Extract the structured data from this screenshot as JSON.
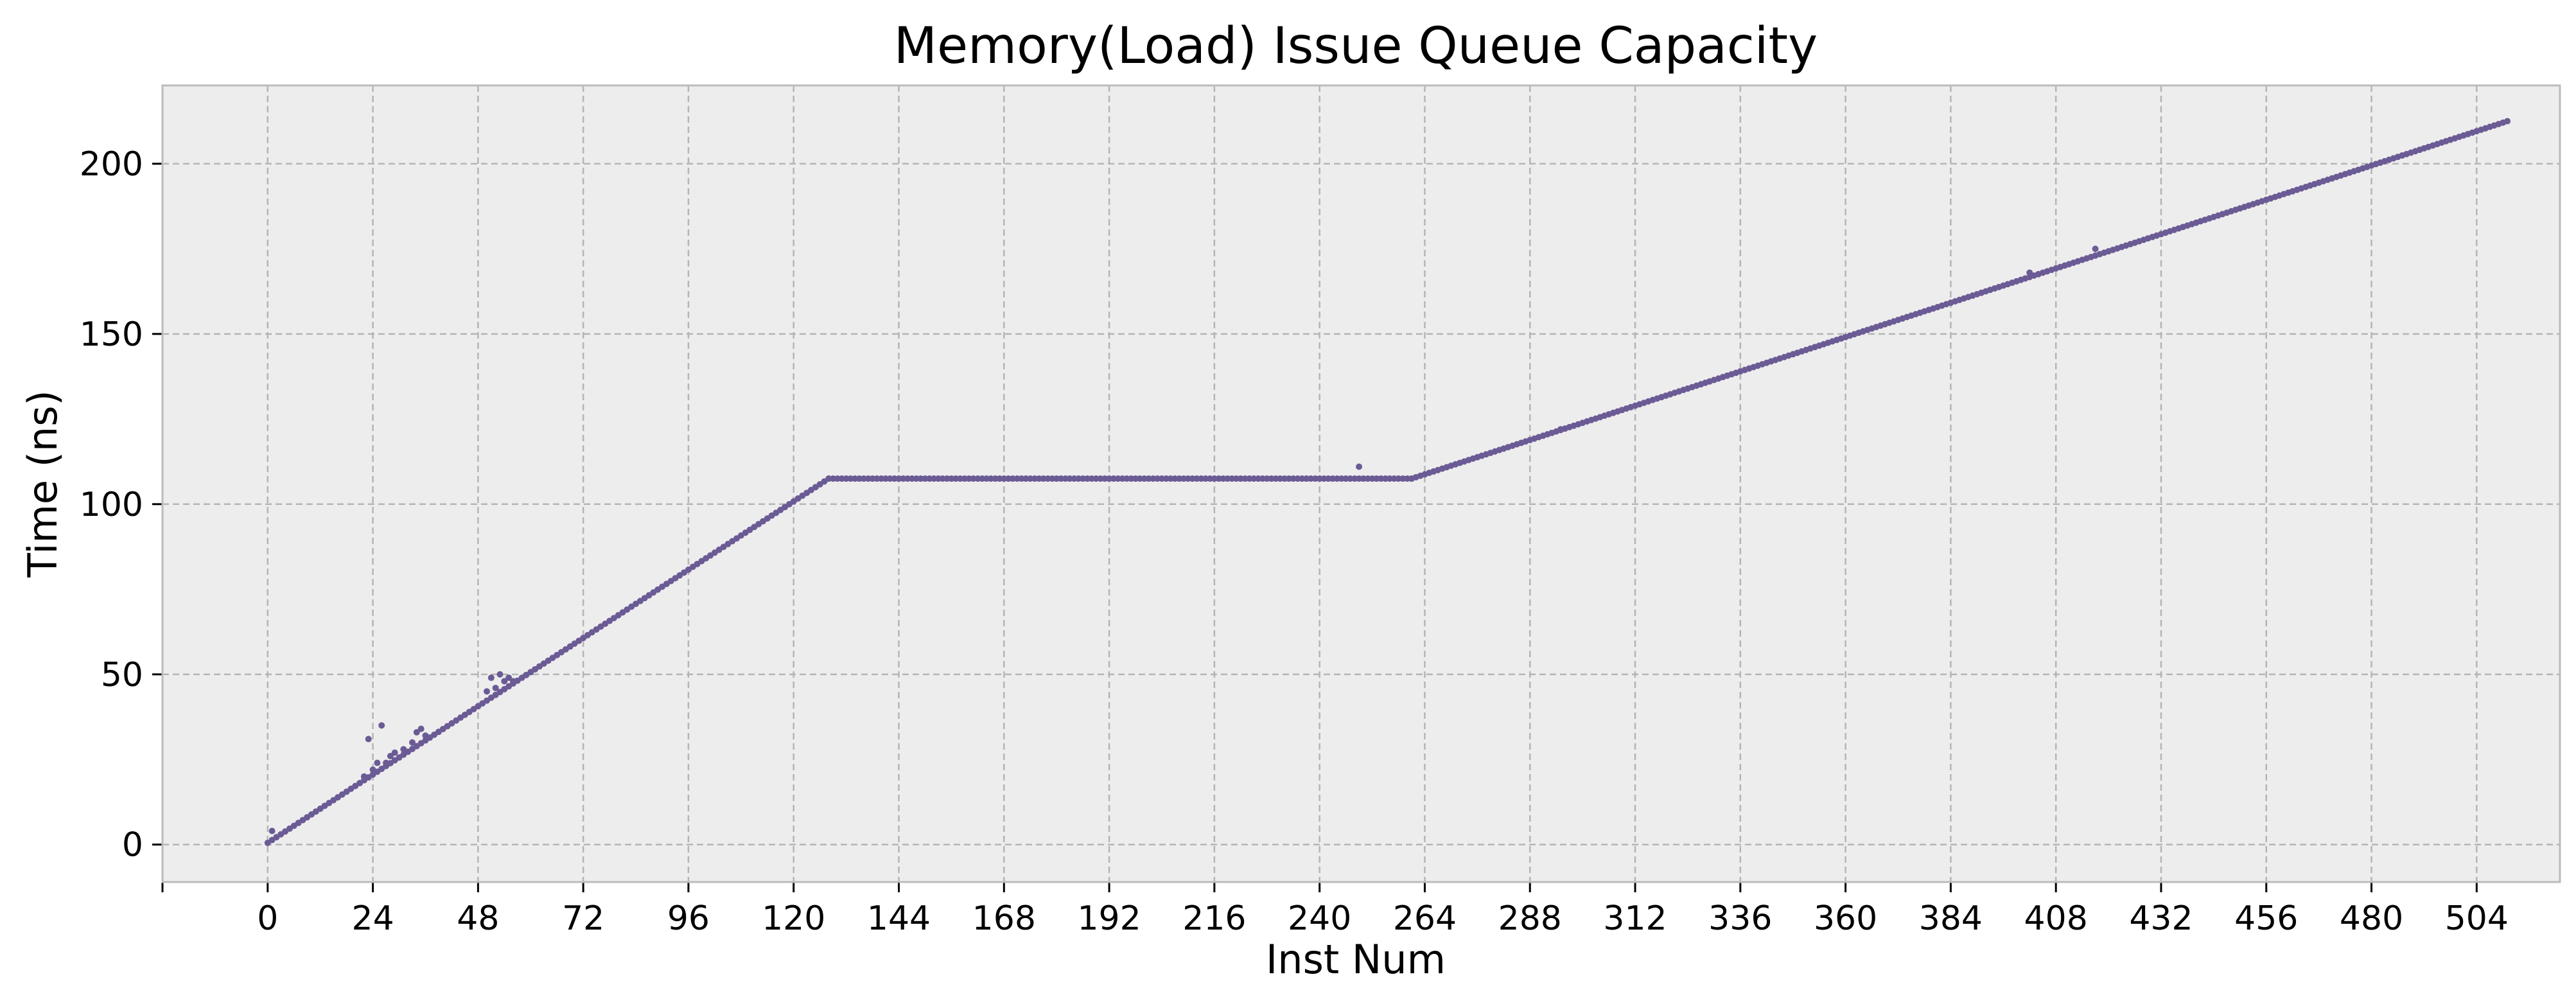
{
  "chart_data": {
    "type": "scatter",
    "title": "Memory(Load) Issue Queue Capacity",
    "xlabel": "Inst Num",
    "ylabel": "Time (ns)",
    "xlim": [
      -24,
      523
    ],
    "ylim": [
      -11,
      223
    ],
    "x_ticks": [
      0,
      24,
      48,
      72,
      96,
      120,
      144,
      168,
      192,
      216,
      240,
      264,
      288,
      312,
      336,
      360,
      384,
      408,
      432,
      456,
      480,
      504
    ],
    "y_ticks": [
      0,
      50,
      100,
      150,
      200
    ],
    "grid": true,
    "legend": "none",
    "colors": {
      "background": "#ededed",
      "grid": "#b5b5b5",
      "axes_edge": "#bcbcbc",
      "marker": "#6b5b95"
    },
    "series": [
      {
        "segments": [
          {
            "x_start": 0,
            "x_end": 128,
            "y_start": 0.5,
            "y_end": 107.5
          },
          {
            "x_start": 128,
            "x_end": 261,
            "y_start": 107.5,
            "y_end": 107.5
          },
          {
            "x_start": 261,
            "x_end": 511,
            "y_start": 107.5,
            "y_end": 212.5
          }
        ],
        "outliers": [
          {
            "x": 1,
            "y": 4
          },
          {
            "x": 22,
            "y": 20
          },
          {
            "x": 23,
            "y": 31
          },
          {
            "x": 24,
            "y": 22
          },
          {
            "x": 25,
            "y": 24
          },
          {
            "x": 26,
            "y": 35
          },
          {
            "x": 27,
            "y": 24
          },
          {
            "x": 28,
            "y": 26
          },
          {
            "x": 29,
            "y": 27
          },
          {
            "x": 31,
            "y": 28
          },
          {
            "x": 33,
            "y": 30
          },
          {
            "x": 34,
            "y": 33
          },
          {
            "x": 35,
            "y": 34
          },
          {
            "x": 36,
            "y": 32
          },
          {
            "x": 50,
            "y": 45
          },
          {
            "x": 51,
            "y": 49
          },
          {
            "x": 52,
            "y": 46
          },
          {
            "x": 53,
            "y": 50
          },
          {
            "x": 54,
            "y": 48
          },
          {
            "x": 55,
            "y": 49
          },
          {
            "x": 56,
            "y": 48
          },
          {
            "x": 249,
            "y": 111
          },
          {
            "x": 295,
            "y": 122
          },
          {
            "x": 402,
            "y": 168
          },
          {
            "x": 417,
            "y": 175
          }
        ]
      }
    ]
  }
}
